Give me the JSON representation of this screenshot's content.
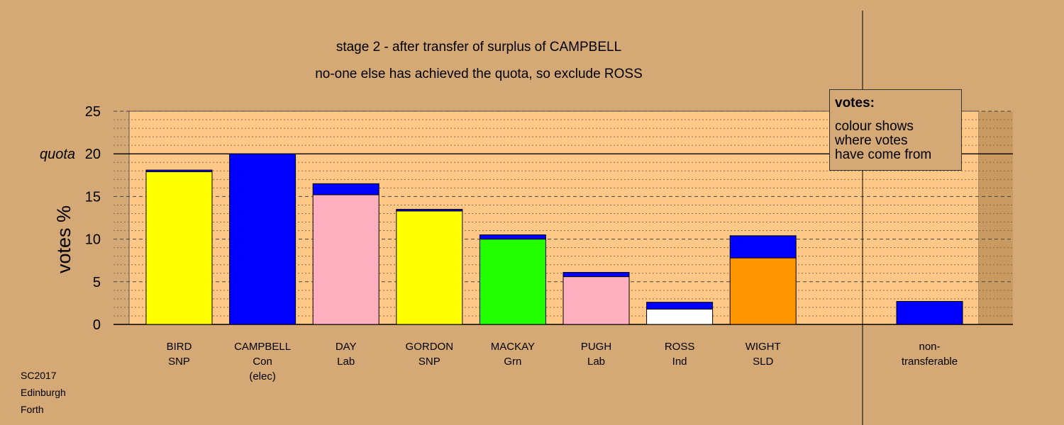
{
  "chart_data": {
    "type": "bar",
    "title": "stage 2 - after transfer of surplus of CAMPBELL",
    "subtitle": "no-one else has achieved the quota, so exclude ROSS",
    "ylabel": "votes %",
    "ylim": [
      0,
      25
    ],
    "yticks": [
      0,
      5,
      10,
      15,
      20,
      25
    ],
    "quota_label": "quota",
    "quota": 20,
    "grid": true,
    "categories": [
      {
        "name": "BIRD",
        "party": "SNP",
        "note": ""
      },
      {
        "name": "CAMPBELL",
        "party": "Con",
        "note": "(elec)"
      },
      {
        "name": "DAY",
        "party": "Lab",
        "note": ""
      },
      {
        "name": "GORDON",
        "party": "SNP",
        "note": ""
      },
      {
        "name": "MACKAY",
        "party": "Grn",
        "note": ""
      },
      {
        "name": "PUGH",
        "party": "Lab",
        "note": ""
      },
      {
        "name": "ROSS",
        "party": "Ind",
        "note": ""
      },
      {
        "name": "WIGHT",
        "party": "SLD",
        "note": ""
      }
    ],
    "nontransferable_label": [
      "non-",
      "transferable"
    ],
    "bars": [
      {
        "segments": [
          {
            "value": 17.9,
            "color": "#ffff00"
          },
          {
            "value": 0.2,
            "color": "#0000ff"
          }
        ]
      },
      {
        "segments": [
          {
            "value": 20.0,
            "color": "#0000ff"
          }
        ]
      },
      {
        "segments": [
          {
            "value": 15.2,
            "color": "#ffb0c0"
          },
          {
            "value": 1.3,
            "color": "#0000ff"
          }
        ]
      },
      {
        "segments": [
          {
            "value": 13.3,
            "color": "#ffff00"
          },
          {
            "value": 0.2,
            "color": "#0000ff"
          }
        ]
      },
      {
        "segments": [
          {
            "value": 10.0,
            "color": "#22ff00"
          },
          {
            "value": 0.5,
            "color": "#0000ff"
          }
        ]
      },
      {
        "segments": [
          {
            "value": 5.6,
            "color": "#ffb0c0"
          },
          {
            "value": 0.5,
            "color": "#0000ff"
          }
        ]
      },
      {
        "segments": [
          {
            "value": 1.8,
            "color": "#ffffff"
          },
          {
            "value": 0.8,
            "color": "#0000ff"
          }
        ]
      },
      {
        "segments": [
          {
            "value": 7.8,
            "color": "#ff9600"
          },
          {
            "value": 2.6,
            "color": "#0000ff"
          }
        ]
      }
    ],
    "nontransferable": {
      "segments": [
        {
          "value": 2.7,
          "color": "#0000ff"
        }
      ]
    },
    "colors": {
      "background": "#d4a976",
      "plot_area": "#ffc886",
      "plot_area_dark": "#c89a62"
    }
  },
  "legend": {
    "title": "votes:",
    "lines": [
      "colour shows",
      "where votes",
      "have come from"
    ]
  },
  "corner": [
    "SC2017",
    "Edinburgh",
    "Forth"
  ]
}
